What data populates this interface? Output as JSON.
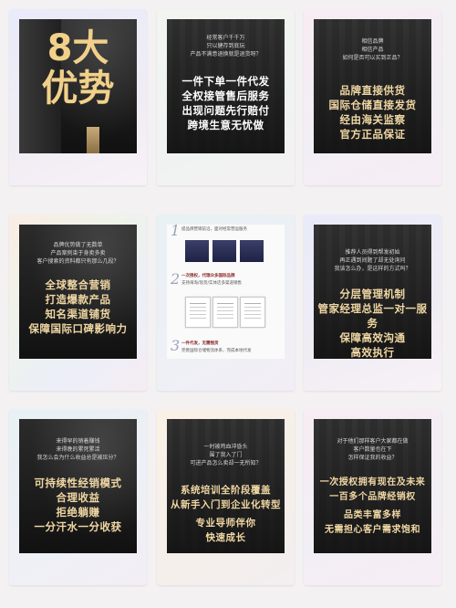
{
  "cards": {
    "c1": {
      "big": "8大",
      "big2": "优势"
    },
    "c2": {
      "small": [
        "经常客户千千万",
        "只以健存到底玩",
        "产品不满意退换就是退货呀？"
      ],
      "big": [
        "一件下单一件代发",
        "全权接管售后服务",
        "出现问题先行赔付",
        "跨境生意无忧做"
      ]
    },
    "c3": {
      "small": [
        "相信品牌",
        "相信产品",
        "如何是否可以买到正品？"
      ],
      "big": [
        "品牌直接供货",
        "国际仓储直接发货",
        "经由海关监察",
        "官方正品保证"
      ]
    },
    "c4": {
      "small": [
        "品牌优势做了无数单",
        "产品案例束于身卖多卖",
        "客户搜索的资料都只有那么几段？"
      ],
      "big": [
        "全球整合营销",
        "打造爆款产品",
        "知名渠道铺货",
        "保障国际口碑影响力"
      ]
    },
    "c5": {
      "step1": "提品牌营销前沿，面对经常营运服务",
      "step2_title": "一次授权，代理众多国际品牌",
      "step2_sub": "支持海淘/现货/实体店多渠道销售",
      "step3_title": "一件代发，无需囤货",
      "step3_sub": "完善国际仓储物流体系，完成本地代发",
      "nums": [
        "1",
        "2",
        "3"
      ]
    },
    "c6": {
      "small": [
        "推荐人员得到帮发初始",
        "再正遇到间题了却无处询问",
        "我该怎么办，是这样的方式吗？"
      ],
      "big": [
        "分层管理机制",
        "管家经理总监一对一服务",
        "保障高效沟通",
        "高效执行"
      ]
    },
    "c7": {
      "small": [
        "来得早的销着赚钱",
        "来得晚的累死累活",
        "我怎么会为什么收益总是被压分？"
      ],
      "big": [
        "可持续性经销模式",
        "合理收益",
        "拒绝躺赚",
        "一分汗水一分收获"
      ]
    },
    "c8": {
      "small": [
        "一时被鸡血冲昏头",
        "围了我入了门",
        "可进产品怎么卖却一无所知？"
      ],
      "big": [
        "系统培训全阶段覆盖",
        "从新手入门到企业化转型",
        "专业导师伴你",
        "快速成长"
      ]
    },
    "c9": {
      "small": [
        "对于他们那样客户大家都在做",
        "客户数量也在下",
        "怎样保证我的收益？"
      ],
      "big": [
        "一次授权拥有现在及未来",
        "一百多个品牌经销权",
        "品类丰富多样",
        "无需担心客户需求饱和"
      ]
    }
  },
  "colors": {
    "gold": "#f0d7a3",
    "dark": "#151515"
  }
}
